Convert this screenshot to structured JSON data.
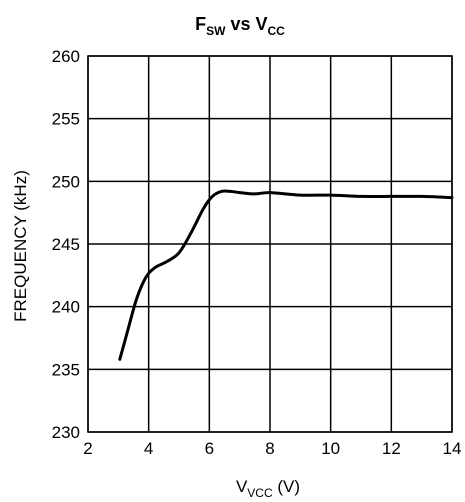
{
  "chart_data": {
    "type": "line",
    "title": {
      "main": "F",
      "main_sub": "SW",
      "mid": " vs V",
      "mid_sub": "CC"
    },
    "xlabel": {
      "main": "V",
      "sub": "VCC",
      "tail": " (V)"
    },
    "ylabel": "FREQUENCY (kHz)",
    "xlim": [
      2,
      14
    ],
    "ylim": [
      230,
      260
    ],
    "xticks": [
      2,
      4,
      6,
      8,
      10,
      12,
      14
    ],
    "yticks": [
      230,
      235,
      240,
      245,
      250,
      255,
      260
    ],
    "grid": true,
    "series": [
      {
        "x": [
          3.05,
          3.3,
          3.6,
          3.9,
          4.2,
          4.6,
          5.0,
          5.4,
          5.8,
          6.1,
          6.4,
          6.7,
          7.0,
          7.5,
          8.0,
          9.0,
          10.0,
          11.0,
          12.0,
          13.0,
          14.0
        ],
        "y": [
          235.8,
          238.0,
          240.6,
          242.3,
          243.1,
          243.6,
          244.3,
          245.9,
          247.8,
          248.8,
          249.2,
          249.2,
          249.1,
          249.0,
          249.1,
          248.9,
          248.9,
          248.8,
          248.8,
          248.8,
          248.7
        ]
      }
    ]
  }
}
